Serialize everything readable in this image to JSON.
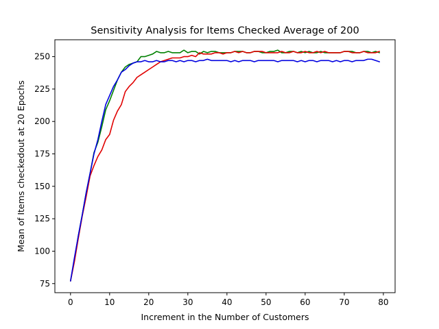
{
  "chart_data": {
    "type": "line",
    "title": "Sensitivity Analysis for Items Checked Average of 200",
    "xlabel": "Increment in the Number of Customers",
    "ylabel": "Mean of Items checkedout at 20 Epochs",
    "xlim": [
      -4,
      83
    ],
    "ylim": [
      68,
      263
    ],
    "xticks": [
      0,
      10,
      20,
      30,
      40,
      50,
      60,
      70,
      80
    ],
    "yticks": [
      75,
      100,
      125,
      150,
      175,
      200,
      225,
      250
    ],
    "grid": false,
    "legend": null,
    "x_start": 0,
    "x_step": 1,
    "series": [
      {
        "color": "#008000",
        "values": [
          77,
          93,
          112,
          128,
          145,
          160,
          176,
          184,
          196,
          209,
          216,
          224,
          232,
          238,
          242,
          244,
          245,
          246,
          250,
          250,
          251,
          252,
          254,
          253,
          253,
          254,
          253,
          253,
          253,
          255,
          253,
          254,
          254,
          252,
          254,
          253,
          254,
          254,
          253,
          253,
          253,
          253,
          254,
          254,
          254,
          253,
          253,
          254,
          254,
          253,
          253,
          254,
          254,
          255,
          253,
          253,
          254,
          254,
          253,
          254,
          253,
          254,
          253,
          253,
          254,
          253,
          253,
          253,
          253,
          253,
          254,
          254,
          254,
          253,
          253,
          254,
          254,
          253,
          254,
          253
        ]
      },
      {
        "color": "#e00000",
        "values": [
          77,
          92,
          110,
          127,
          142,
          158,
          166,
          173,
          178,
          186,
          190,
          201,
          208,
          213,
          223,
          227,
          230,
          234,
          236,
          238,
          240,
          242,
          244,
          246,
          247,
          248,
          249,
          249,
          249,
          250,
          250,
          251,
          250,
          253,
          252,
          252,
          252,
          253,
          253,
          252,
          253,
          253,
          254,
          253,
          254,
          253,
          253,
          254,
          254,
          254,
          253,
          253,
          253,
          253,
          254,
          253,
          253,
          254,
          253,
          253,
          254,
          253,
          253,
          254,
          253,
          254,
          253,
          253,
          253,
          253,
          254,
          254,
          253,
          253,
          253,
          254,
          253,
          253,
          253,
          254
        ]
      },
      {
        "color": "#0000e0",
        "values": [
          77,
          95,
          112,
          128,
          145,
          160,
          175,
          186,
          200,
          213,
          220,
          227,
          232,
          238,
          240,
          243,
          245,
          246,
          246,
          247,
          246,
          246,
          247,
          246,
          246,
          247,
          247,
          246,
          247,
          246,
          247,
          247,
          246,
          247,
          247,
          248,
          247,
          247,
          247,
          247,
          247,
          246,
          247,
          246,
          247,
          247,
          247,
          246,
          247,
          247,
          247,
          247,
          247,
          246,
          247,
          247,
          247,
          247,
          246,
          247,
          246,
          247,
          247,
          246,
          247,
          247,
          247,
          246,
          247,
          246,
          247,
          247,
          246,
          247,
          247,
          247,
          248,
          248,
          247,
          246
        ]
      }
    ]
  }
}
